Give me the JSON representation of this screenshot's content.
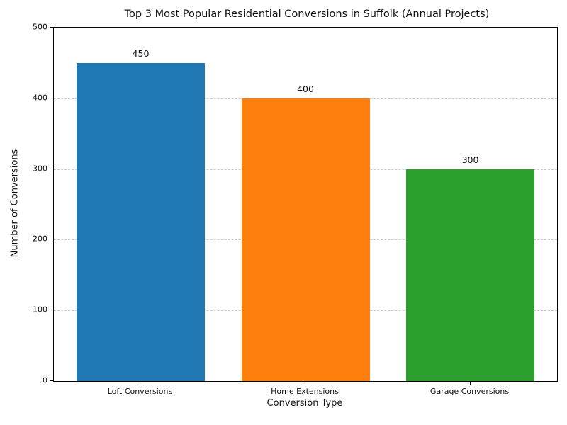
{
  "chart_data": {
    "type": "bar",
    "title": "Top 3 Most Popular Residential Conversions in Suffolk (Annual Projects)",
    "xlabel": "Conversion Type",
    "ylabel": "Number of Conversions",
    "categories": [
      "Loft Conversions",
      "Home Extensions",
      "Garage Conversions"
    ],
    "values": [
      450,
      400,
      300
    ],
    "value_labels": [
      "450",
      "400",
      "300"
    ],
    "bar_colors": [
      "#1f77b4",
      "#ff7f0e",
      "#2ca02c"
    ],
    "ylim": [
      0,
      500
    ],
    "yticks": [
      0,
      100,
      200,
      300,
      400,
      500
    ],
    "grid": "horizontal-dashed",
    "grid_color": "#c9c9c9",
    "legend": "none",
    "background_color": "#ffffff"
  }
}
